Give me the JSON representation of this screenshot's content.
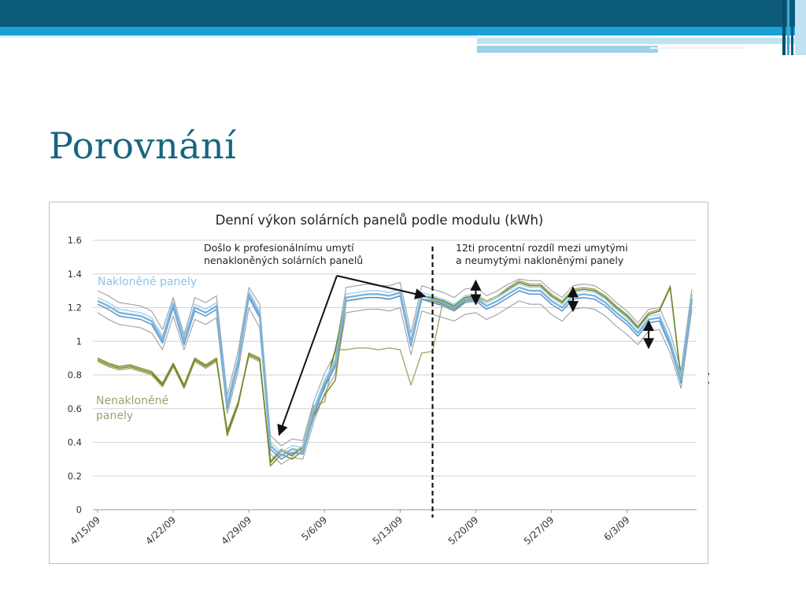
{
  "slide": {
    "title": "Porovnání",
    "colors": {
      "title": "#176580",
      "band_dark": "#0c5a79",
      "band_light": "#1aa0d6"
    }
  },
  "chart_data": {
    "type": "line",
    "title": "Denní výkon solárních panelů podle modulu (kWh)",
    "ylim": [
      0,
      1.6
    ],
    "yticks": [
      "1.6",
      "1.4",
      "1.2",
      "1",
      "0.8",
      "0.6",
      "0.4",
      "0.2",
      "0"
    ],
    "xticks": [
      "4/15/09",
      "4/22/09",
      "4/29/09",
      "5/6/09",
      "5/13/09",
      "5/20/09",
      "5/27/09",
      "6/3/09"
    ],
    "x_start": "2009-04-15",
    "grid": true,
    "legend_labels": {
      "tilted": "Nakloněné panely",
      "flat": "Nenakloněné\npanely"
    },
    "annotations": {
      "washing": "Došlo k profesionálnímu umytí\nnenakloněných solárních panelů",
      "difference": "12ti procentní rozdíl mezi umytými\na neumytými nakloněnými panely"
    },
    "washing_date": "2009-05-16",
    "difference_markers_dates": [
      "2009-05-20",
      "2009-05-29",
      "2009-06-05",
      "2009-06-11"
    ],
    "series": [
      {
        "group": "tilted",
        "color": "#7ab4dd",
        "width": 2.4,
        "values": [
          1.24,
          1.21,
          1.17,
          1.16,
          1.15,
          1.12,
          1.01,
          1.22,
          1.0,
          1.2,
          1.17,
          1.21,
          0.62,
          0.88,
          1.28,
          1.16,
          0.38,
          0.32,
          0.36,
          0.35,
          0.58,
          0.75,
          0.87,
          1.26,
          1.27,
          1.28,
          1.28,
          1.27,
          1.29,
          0.99,
          1.27,
          1.25,
          1.23,
          1.2,
          1.25,
          1.26,
          1.21,
          1.24,
          1.28,
          1.32,
          1.3,
          1.3,
          1.24,
          1.2,
          1.27,
          1.28,
          1.27,
          1.23,
          1.17,
          1.12,
          1.05,
          1.13,
          1.14,
          0.99,
          0.77,
          1.25
        ]
      },
      {
        "group": "tilted",
        "color": "#5b93d0",
        "width": 1.5,
        "values": [
          1.22,
          1.19,
          1.15,
          1.14,
          1.13,
          1.1,
          0.99,
          1.2,
          0.98,
          1.18,
          1.15,
          1.19,
          0.6,
          0.86,
          1.26,
          1.14,
          0.36,
          0.3,
          0.34,
          0.33,
          0.56,
          0.73,
          0.85,
          1.24,
          1.25,
          1.26,
          1.26,
          1.25,
          1.27,
          0.97,
          1.25,
          1.23,
          1.21,
          1.18,
          1.23,
          1.24,
          1.19,
          1.22,
          1.26,
          1.3,
          1.28,
          1.28,
          1.22,
          1.18,
          1.25,
          1.26,
          1.25,
          1.21,
          1.15,
          1.1,
          1.03,
          1.11,
          1.12,
          0.97,
          0.75,
          1.23
        ]
      },
      {
        "group": "tilted",
        "color": "#a8d4ec",
        "width": 1.5,
        "values": [
          1.26,
          1.23,
          1.19,
          1.18,
          1.17,
          1.14,
          1.03,
          1.24,
          1.02,
          1.22,
          1.19,
          1.23,
          0.64,
          0.9,
          1.3,
          1.18,
          0.4,
          0.34,
          0.38,
          0.37,
          0.6,
          0.77,
          0.89,
          1.28,
          1.29,
          1.3,
          1.3,
          1.29,
          1.31,
          1.01,
          1.29,
          1.27,
          1.25,
          1.22,
          1.27,
          1.28,
          1.23,
          1.26,
          1.3,
          1.34,
          1.32,
          1.32,
          1.26,
          1.22,
          1.29,
          1.3,
          1.29,
          1.25,
          1.19,
          1.14,
          1.07,
          1.15,
          1.16,
          1.01,
          0.79,
          1.27
        ]
      },
      {
        "group": "tilted",
        "color": "#9ca0a6",
        "width": 1.1,
        "values": [
          1.3,
          1.27,
          1.23,
          1.22,
          1.21,
          1.18,
          1.07,
          1.26,
          1.04,
          1.26,
          1.23,
          1.27,
          0.68,
          0.94,
          1.32,
          1.22,
          0.44,
          0.38,
          0.42,
          0.41,
          0.64,
          0.81,
          0.93,
          1.32,
          1.33,
          1.34,
          1.33,
          1.33,
          1.35,
          1.05,
          1.33,
          1.31,
          1.29,
          1.26,
          1.31,
          1.32,
          1.27,
          1.3,
          1.34,
          1.37,
          1.36,
          1.36,
          1.3,
          1.26,
          1.33,
          1.34,
          1.33,
          1.29,
          1.23,
          1.18,
          1.11,
          1.19,
          1.2,
          1.05,
          0.83,
          1.31
        ]
      },
      {
        "group": "tilted",
        "color": "#9ca0a6",
        "width": 1.1,
        "values": [
          1.17,
          1.13,
          1.1,
          1.09,
          1.08,
          1.05,
          0.95,
          1.15,
          0.95,
          1.13,
          1.1,
          1.14,
          0.57,
          0.82,
          1.2,
          1.08,
          0.33,
          0.27,
          0.31,
          0.3,
          0.52,
          0.69,
          0.81,
          1.17,
          1.18,
          1.19,
          1.19,
          1.18,
          1.2,
          0.92,
          1.18,
          1.16,
          1.14,
          1.12,
          1.16,
          1.17,
          1.13,
          1.16,
          1.2,
          1.24,
          1.22,
          1.22,
          1.16,
          1.12,
          1.19,
          1.2,
          1.19,
          1.15,
          1.09,
          1.04,
          0.98,
          1.06,
          1.07,
          0.93,
          0.72,
          1.19
        ]
      },
      {
        "group": "flat",
        "color": "#8b8f3a",
        "width": 1.6,
        "values": [
          0.9,
          0.87,
          0.85,
          0.86,
          0.84,
          0.82,
          0.75,
          0.87,
          0.74,
          0.9,
          0.86,
          0.9,
          0.44,
          0.62,
          0.93,
          0.9,
          0.26,
          0.33,
          0.3,
          0.35,
          0.55,
          0.68,
          0.77,
          1.24,
          1.25,
          1.26,
          1.26,
          1.25,
          1.27,
          0.98,
          1.25,
          1.24,
          1.22,
          1.19,
          1.24,
          1.25,
          1.21,
          1.24,
          1.28,
          1.32,
          1.3,
          1.3,
          1.24,
          1.2,
          1.27,
          1.28,
          1.27,
          1.23,
          1.17,
          1.12,
          1.05,
          1.13,
          1.14,
          1.0,
          0.76,
          1.25
        ]
      },
      {
        "group": "flat",
        "color": "#6e8a2e",
        "width": 1.6,
        "values": [
          0.89,
          0.86,
          0.84,
          0.85,
          0.83,
          0.81,
          0.74,
          0.86,
          0.73,
          0.89,
          0.85,
          0.89,
          0.46,
          0.63,
          0.92,
          0.89,
          0.28,
          0.35,
          0.32,
          0.37,
          0.6,
          0.72,
          0.95,
          1.26,
          1.27,
          1.28,
          1.28,
          1.27,
          1.29,
          1.0,
          1.27,
          1.26,
          1.24,
          1.21,
          1.26,
          1.27,
          1.23,
          1.26,
          1.31,
          1.35,
          1.33,
          1.33,
          1.27,
          1.23,
          1.3,
          1.31,
          1.3,
          1.26,
          1.2,
          1.15,
          1.08,
          1.16,
          1.18,
          1.32,
          0.77,
          1.27
        ]
      },
      {
        "group": "flat",
        "color": "#a8a86a",
        "width": 1.4,
        "values": [
          0.88,
          0.85,
          0.83,
          0.84,
          0.82,
          0.8,
          0.73,
          0.85,
          0.72,
          0.88,
          0.84,
          0.88,
          0.47,
          0.64,
          0.91,
          0.88,
          0.29,
          0.36,
          0.33,
          0.38,
          0.62,
          0.64,
          0.95,
          0.95,
          0.96,
          0.96,
          0.95,
          0.96,
          0.95,
          0.74,
          0.93,
          0.94,
          1.25,
          1.22,
          1.27,
          1.28,
          1.24,
          1.27,
          1.32,
          1.36,
          1.34,
          1.34,
          1.28,
          1.24,
          1.31,
          1.32,
          1.31,
          1.27,
          1.21,
          1.16,
          1.09,
          1.17,
          1.19,
          1.33,
          0.78,
          1.28
        ]
      }
    ]
  }
}
